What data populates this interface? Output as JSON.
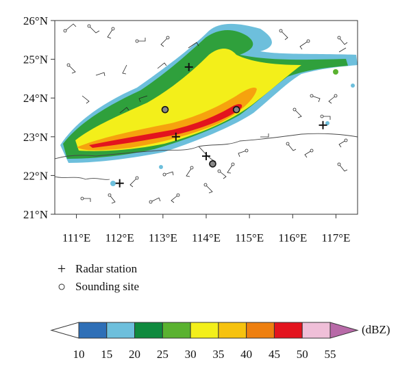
{
  "map": {
    "lat_labels": [
      "26°N",
      "25°N",
      "24°N",
      "23°N",
      "22°N",
      "21°N"
    ],
    "lon_labels": [
      "111°E",
      "112°E",
      "113°E",
      "114°E",
      "115°E",
      "116°E",
      "117°E"
    ],
    "lat_range": [
      21,
      26
    ],
    "lon_range": [
      110.5,
      117.5
    ]
  },
  "markers": {
    "radar_stations": [
      {
        "lon": 113.6,
        "lat": 24.8
      },
      {
        "lon": 113.3,
        "lat": 23.0
      },
      {
        "lon": 114.0,
        "lat": 22.5
      },
      {
        "lon": 112.0,
        "lat": 21.8
      },
      {
        "lon": 116.7,
        "lat": 23.3
      }
    ],
    "sounding_sites": [
      {
        "lon": 113.05,
        "lat": 23.7
      },
      {
        "lon": 114.7,
        "lat": 23.7
      },
      {
        "lon": 114.15,
        "lat": 22.3
      }
    ]
  },
  "legend": {
    "radar_station_label": "Radar station",
    "sounding_site_label": "Sounding site",
    "radar_symbol": "+",
    "sounding_symbol": "○"
  },
  "colorbar": {
    "unit": "(dBZ)",
    "ticks": [
      "10",
      "15",
      "20",
      "25",
      "30",
      "35",
      "40",
      "45",
      "50",
      "55"
    ],
    "colors": [
      "#ffffff",
      "#2e6fb7",
      "#6dbfdc",
      "#0f8a3e",
      "#5ab230",
      "#f3ef1a",
      "#f6c20e",
      "#ee7f0f",
      "#e3141e",
      "#efbfd8",
      "#b86aa8"
    ]
  }
}
